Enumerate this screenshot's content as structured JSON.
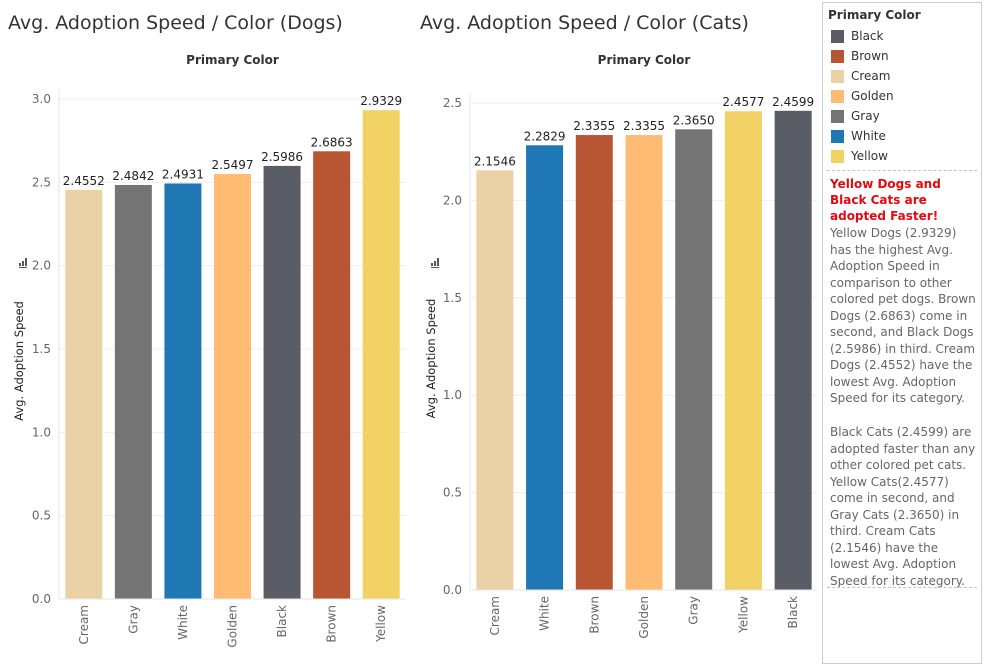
{
  "titles": {
    "dogs": "Avg. Adoption Speed / Color (Dogs)",
    "cats": "Avg. Adoption Speed / Color (Cats)"
  },
  "chart_data": [
    {
      "type": "bar",
      "title": "Avg. Adoption Speed / Color (Dogs)",
      "header": "Primary Color",
      "ylabel": "Avg. Adoption Speed",
      "ylim": [
        0,
        3.0
      ],
      "yticks": [
        "0.0",
        "0.5",
        "1.0",
        "1.5",
        "2.0",
        "2.5",
        "3.0"
      ],
      "grid": true,
      "categories": [
        "Cream",
        "Gray",
        "White",
        "Golden",
        "Black",
        "Brown",
        "Yellow"
      ],
      "values": [
        2.4552,
        2.4842,
        2.4931,
        2.5497,
        2.5986,
        2.6863,
        2.9329
      ],
      "value_labels": [
        "2.4552",
        "2.4842",
        "2.4931",
        "2.5497",
        "2.5986",
        "2.6863",
        "2.9329"
      ]
    },
    {
      "type": "bar",
      "title": "Avg. Adoption Speed / Color (Cats)",
      "header": "Primary Color",
      "ylabel": "Avg. Adoption Speed",
      "ylim": [
        0,
        2.5
      ],
      "yticks": [
        "0.0",
        "0.5",
        "1.0",
        "1.5",
        "2.0",
        "2.5"
      ],
      "grid": true,
      "categories": [
        "Cream",
        "White",
        "Brown",
        "Golden",
        "Gray",
        "Yellow",
        "Black"
      ],
      "values": [
        2.1546,
        2.2829,
        2.3355,
        2.3355,
        2.365,
        2.4577,
        2.4599
      ],
      "value_labels": [
        "2.1546",
        "2.2829",
        "2.3355",
        "2.3355",
        "2.3650",
        "2.4577",
        "2.4599"
      ]
    }
  ],
  "colors": {
    "Black": "#5a5d65",
    "Brown": "#b85634",
    "Cream": "#ead2a6",
    "Golden": "#fdbb74",
    "Gray": "#747474",
    "White": "#1f77b4",
    "Yellow": "#f2d265"
  },
  "legend": {
    "title": "Primary Color",
    "items": [
      "Black",
      "Brown",
      "Cream",
      "Golden",
      "Gray",
      "White",
      "Yellow"
    ]
  },
  "notes": {
    "highlight": "Yellow Dogs and Black Cats are adopted Faster!",
    "dogs": "Yellow Dogs (2.9329) has the highest Avg. Adoption Speed in comparison to other colored pet dogs. Brown Dogs (2.6863) come in second, and Black Dogs (2.5986) in third. Cream Dogs (2.4552) have the lowest Avg. Adoption Speed for its category.",
    "cats": "Black Cats (2.4599) are adopted faster than any other colored pet cats. Yellow Cats(2.4577) come in second, and Gray Cats (2.3650) in third. Cream Cats (2.1546) have the lowest Avg. Adoption Speed for its category."
  }
}
